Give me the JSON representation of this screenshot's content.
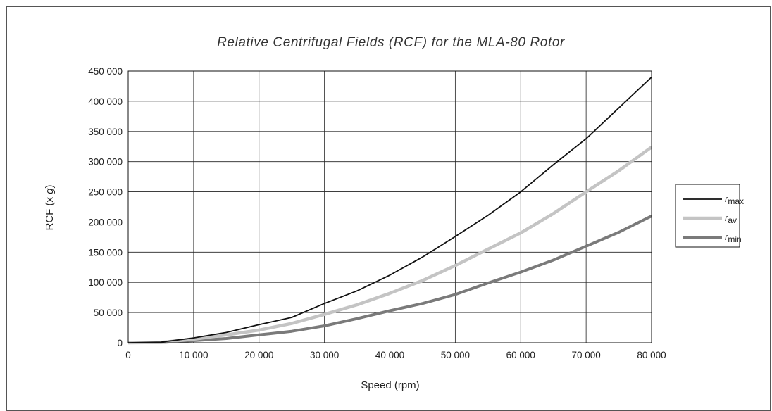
{
  "chart_data": {
    "type": "line",
    "title": "Relative Centrifugal Fields (RCF) for the MLA-80 Rotor",
    "xlabel": "Speed (rpm)",
    "ylabel_main": "RCF (x ",
    "ylabel_italic": "g",
    "ylabel_end": ")",
    "xlim": [
      0,
      80000
    ],
    "ylim": [
      0,
      450000
    ],
    "grid": true,
    "legend_position": "right",
    "x_ticks": [
      0,
      10000,
      20000,
      30000,
      40000,
      50000,
      60000,
      70000,
      80000
    ],
    "x_tick_labels": [
      "0",
      "10 000",
      "20 000",
      "30 000",
      "40 000",
      "50 000",
      "60 000",
      "70 000",
      "80 000"
    ],
    "y_ticks": [
      0,
      50000,
      100000,
      150000,
      200000,
      250000,
      300000,
      350000,
      400000,
      450000
    ],
    "y_tick_labels": [
      "0",
      "50 000",
      "100 000",
      "150 000",
      "200 000",
      "250 000",
      "300 000",
      "350 000",
      "400 000",
      "450 000"
    ],
    "x": [
      0,
      5000,
      10000,
      15000,
      20000,
      25000,
      30000,
      35000,
      40000,
      45000,
      50000,
      55000,
      60000,
      65000,
      70000,
      75000,
      80000
    ],
    "series": [
      {
        "name": "r",
        "subscript": "max",
        "color": "#111111",
        "values": [
          0,
          1000,
          8000,
          17000,
          30000,
          42000,
          65000,
          86000,
          112000,
          142000,
          176000,
          211000,
          250000,
          295000,
          338000,
          389000,
          440000
        ]
      },
      {
        "name": "r",
        "subscript": "av",
        "color": "#c4c4c4",
        "values": [
          0,
          600,
          6000,
          13000,
          21000,
          32000,
          47000,
          63000,
          82000,
          103000,
          128000,
          155000,
          182000,
          214000,
          250000,
          285000,
          324000
        ]
      },
      {
        "name": "r",
        "subscript": "min",
        "color": "#7a7a7a",
        "values": [
          0,
          400,
          3500,
          7000,
          13000,
          19000,
          28000,
          40000,
          53000,
          65000,
          80000,
          99000,
          117000,
          137000,
          160000,
          183000,
          210000
        ]
      }
    ]
  }
}
